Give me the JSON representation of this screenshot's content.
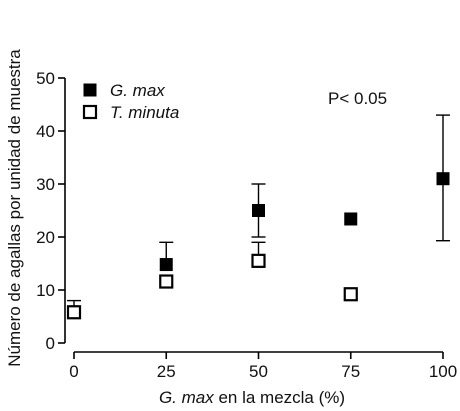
{
  "chart_data": {
    "type": "scatter",
    "ylabel": "Número de agallas por unidad de muestra",
    "xlabel": {
      "italic": "G. max",
      "rest": " en la mezcla (%)"
    },
    "annotation": "P< 0.05",
    "xlim": [
      0,
      100
    ],
    "ylim": [
      0,
      50
    ],
    "x_ticks": [
      0,
      25,
      50,
      75,
      100
    ],
    "y_ticks": [
      0,
      10,
      20,
      30,
      40,
      50
    ],
    "grid": false,
    "legend_position": "top-left",
    "series": [
      {
        "name": "G. max",
        "marker": "filled-square",
        "color": "#000000",
        "points": [
          {
            "x": 25,
            "y": 14.8,
            "err_hi": 19,
            "err_lo": 14.8
          },
          {
            "x": 50,
            "y": 25,
            "err_hi": 30,
            "err_lo": 20
          },
          {
            "x": 75,
            "y": 23.4,
            "err_hi": 23.4,
            "err_lo": 23.4
          },
          {
            "x": 100,
            "y": 31,
            "err_hi": 43,
            "err_lo": 19.3
          }
        ]
      },
      {
        "name": "T. minuta",
        "marker": "open-square",
        "color": "#000000",
        "points": [
          {
            "x": 0,
            "y": 5.8,
            "err_hi": 8,
            "err_lo": 5.8
          },
          {
            "x": 25,
            "y": 11.6,
            "err_hi": 11.6,
            "err_lo": 11.6
          },
          {
            "x": 50,
            "y": 15.5,
            "err_hi": 19,
            "err_lo": 15.5
          },
          {
            "x": 75,
            "y": 9.2,
            "err_hi": 9.2,
            "err_lo": 9.2
          }
        ]
      }
    ]
  }
}
